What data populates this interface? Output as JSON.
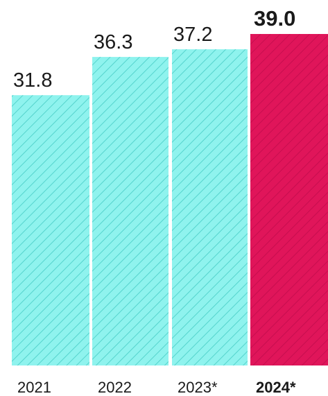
{
  "chart_data": {
    "type": "bar",
    "categories": [
      "2021",
      "2022",
      "2023*",
      "2024*"
    ],
    "values": [
      31.8,
      36.3,
      37.2,
      39.0
    ],
    "value_labels": [
      "31.8",
      "36.3",
      "37.2",
      "39.0"
    ],
    "highlight_index": 3,
    "colors": {
      "default_bar": "#8ff3ee",
      "default_hatch": "#55d4cd",
      "highlight_bar": "#e0155a",
      "highlight_hatch": "#c60e4f"
    },
    "ylim": [
      0,
      39.0
    ],
    "grid": false,
    "legend": "none"
  }
}
